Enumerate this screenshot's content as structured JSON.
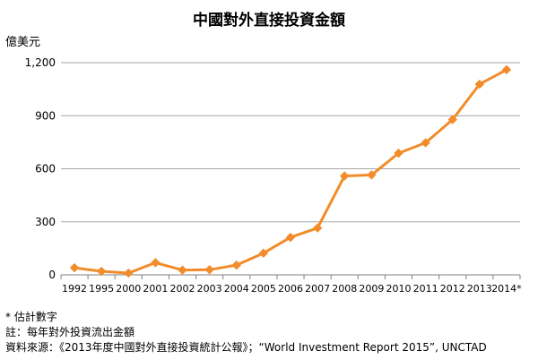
{
  "chart_data": {
    "type": "line",
    "title": "中國對外直接投資金額",
    "ylabel": "億美元",
    "xlabel": "",
    "categories": [
      "1992",
      "1995",
      "2000",
      "2001",
      "2002",
      "2003",
      "2004",
      "2005",
      "2006",
      "2007",
      "2008",
      "2009",
      "2010",
      "2011",
      "2012",
      "2013",
      "2014*"
    ],
    "series": [
      {
        "values": [
          40,
          20,
          10,
          69,
          27,
          29,
          55,
          123,
          212,
          265,
          559,
          565,
          688,
          747,
          878,
          1078,
          1160
        ]
      }
    ],
    "ylim": [
      0,
      1200
    ],
    "yticks": [
      0,
      300,
      600,
      900,
      1200
    ],
    "ytick_labels": [
      "0",
      "300",
      "600",
      "900",
      "1,200"
    ],
    "grid": true,
    "colors": {
      "line": "#F28C2B",
      "grid": "#A6A6A6",
      "axis": "#7F7F7F"
    }
  },
  "notes": {
    "estimate": "* 估計數字",
    "note": "註：每年對外投資流出金額",
    "source": "資料來源：《2013年度中國對外直接投資統計公報》；“World Investment Report 2015”, UNCTAD"
  }
}
